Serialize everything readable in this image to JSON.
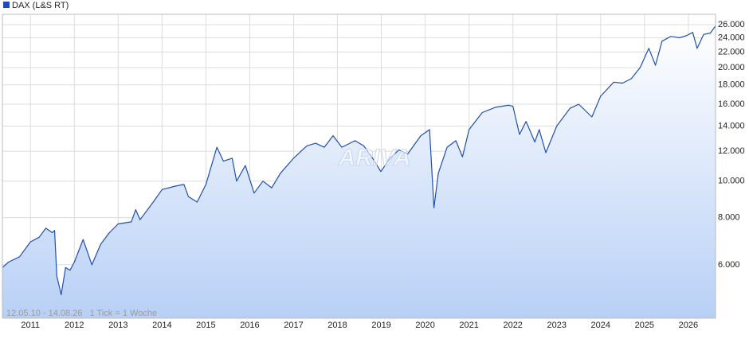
{
  "chart_data": {
    "type": "line",
    "log_scale": true,
    "grid": true,
    "legend": "top-left",
    "watermark": "ARIVA",
    "annotation": "12.05.10 - 14.08.26   1 Tick = 1 Woche",
    "x": [
      2010.36,
      2010.5,
      2010.75,
      2011.0,
      2011.2,
      2011.35,
      2011.5,
      2011.55,
      2011.6,
      2011.7,
      2011.8,
      2011.9,
      2012.0,
      2012.2,
      2012.4,
      2012.6,
      2012.8,
      2013.0,
      2013.3,
      2013.4,
      2013.5,
      2013.8,
      2014.0,
      2014.3,
      2014.5,
      2014.6,
      2014.8,
      2015.0,
      2015.25,
      2015.4,
      2015.6,
      2015.7,
      2015.9,
      2016.1,
      2016.3,
      2016.5,
      2016.7,
      2017.0,
      2017.3,
      2017.5,
      2017.7,
      2017.9,
      2018.1,
      2018.4,
      2018.6,
      2018.8,
      2018.99,
      2019.2,
      2019.4,
      2019.6,
      2019.9,
      2020.1,
      2020.2,
      2020.3,
      2020.5,
      2020.7,
      2020.85,
      2021.0,
      2021.3,
      2021.6,
      2021.9,
      2022.0,
      2022.15,
      2022.3,
      2022.5,
      2022.6,
      2022.75,
      2023.0,
      2023.3,
      2023.5,
      2023.8,
      2024.0,
      2024.3,
      2024.5,
      2024.7,
      2024.9,
      2025.1,
      2025.25,
      2025.4,
      2025.6,
      2025.8,
      2025.95,
      2026.1,
      2026.2,
      2026.35,
      2026.5,
      2026.62
    ],
    "series": [
      {
        "name": "DAX (L&S RT)",
        "color": "#1f4fb4",
        "values": [
          5900,
          6100,
          6300,
          6900,
          7100,
          7500,
          7300,
          7400,
          5600,
          5000,
          5900,
          5800,
          6100,
          7000,
          6000,
          6800,
          7300,
          7700,
          7800,
          8400,
          7900,
          8800,
          9500,
          9700,
          9800,
          9100,
          8800,
          9800,
          12300,
          11300,
          11500,
          10000,
          11000,
          9300,
          10000,
          9600,
          10500,
          11500,
          12400,
          12600,
          12300,
          13200,
          12300,
          12800,
          12400,
          11500,
          10600,
          11500,
          12100,
          11800,
          13200,
          13700,
          8500,
          10500,
          12300,
          12800,
          11600,
          13700,
          15200,
          15700,
          15900,
          15800,
          13300,
          14400,
          12700,
          13700,
          11900,
          14000,
          15600,
          16000,
          14800,
          16800,
          18300,
          18200,
          18700,
          20000,
          22500,
          20300,
          23500,
          24200,
          24000,
          24300,
          24800,
          22500,
          24500,
          24700,
          25800
        ]
      }
    ],
    "xlim": [
      2010.36,
      2026.62
    ],
    "xticks": [
      2011,
      2012,
      2013,
      2014,
      2015,
      2016,
      2017,
      2018,
      2019,
      2020,
      2021,
      2022,
      2023,
      2024,
      2025,
      2026
    ],
    "ylim": [
      4330,
      27700
    ],
    "yticks": [
      {
        "value": 6000,
        "label": "6.000"
      },
      {
        "value": 8000,
        "label": "8.000"
      },
      {
        "value": 10000,
        "label": "10.000"
      },
      {
        "value": 12000,
        "label": "12.000"
      },
      {
        "value": 14000,
        "label": "14.000"
      },
      {
        "value": 16000,
        "label": "16.000"
      },
      {
        "value": 18000,
        "label": "18.000"
      },
      {
        "value": 20000,
        "label": "20.000"
      },
      {
        "value": 22000,
        "label": "22.000"
      },
      {
        "value": 24000,
        "label": "24.000"
      },
      {
        "value": 26000,
        "label": "26.000"
      }
    ]
  }
}
